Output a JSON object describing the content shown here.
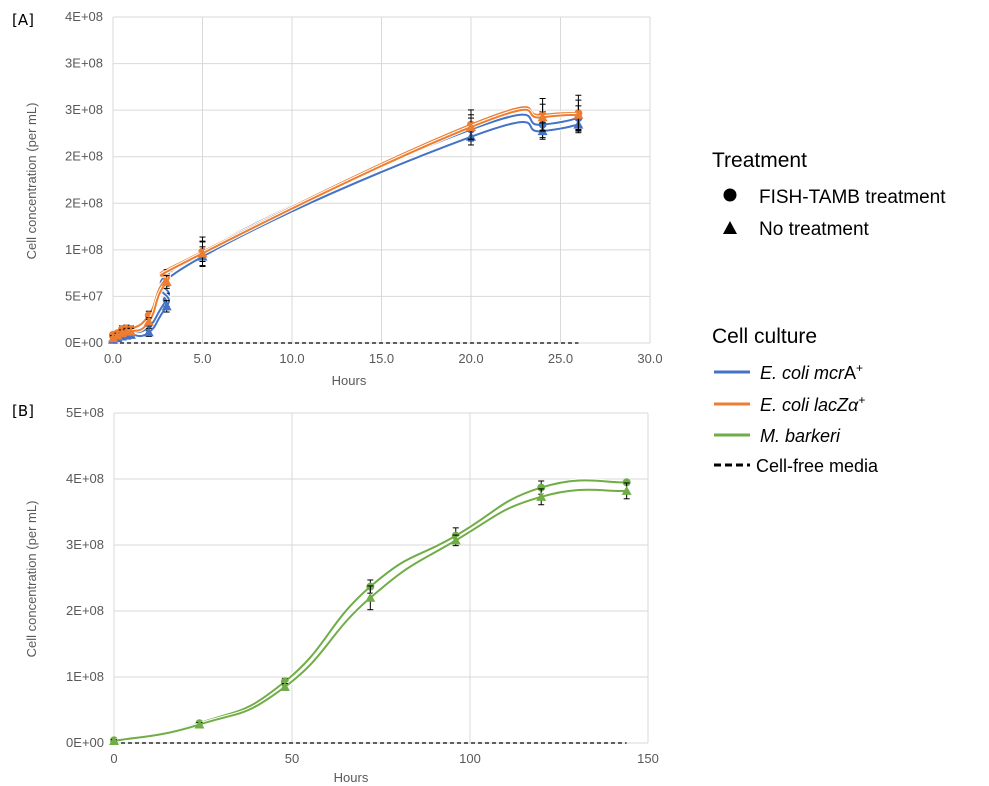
{
  "legend": {
    "treatment_title": "Treatment",
    "treatment_items": [
      {
        "marker": "circle",
        "label": "FISH-TAMB treatment"
      },
      {
        "marker": "triangle",
        "label": "No treatment"
      }
    ],
    "culture_title": "Cell culture",
    "culture_items": [
      {
        "prefix": "E. coli ",
        "italic_part": "mcr",
        "suffix": "A",
        "sup": "+",
        "color": "#4472C4",
        "dash": false
      },
      {
        "prefix": "E. coli ",
        "italic_part": "lacZα",
        "suffix": "",
        "sup": "+",
        "color": "#ED7D31",
        "dash": false
      },
      {
        "prefix": "M. barkeri",
        "italic_part": "",
        "suffix": "",
        "sup": "",
        "color": "#70AD47",
        "dash": false
      },
      {
        "prefix": "",
        "italic_part": "",
        "suffix": "Cell-free media",
        "sup": "",
        "color": "#000000",
        "dash": true
      }
    ]
  },
  "chart_data": [
    {
      "panel": "[A]",
      "type": "line",
      "xlabel": "Hours",
      "ylabel": "Cell concentration (per mL)",
      "xlim": [
        0,
        30
      ],
      "ylim": [
        0,
        400000000
      ],
      "x_ticks": [
        "0.0",
        "5.0",
        "10.0",
        "15.0",
        "20.0",
        "25.0",
        "30.0"
      ],
      "y_ticks": [
        "0E+00",
        "5E+07",
        "1E+08",
        "2E+08",
        "2E+08",
        "3E+08",
        "3E+08",
        "4E+08"
      ],
      "grid": true,
      "x": [
        0,
        0.25,
        0.5,
        0.75,
        1,
        2,
        3,
        5,
        20,
        24,
        26
      ],
      "series": [
        {
          "culture": "E. coli mcrA+",
          "treatment": "FISH-TAMB treatment",
          "color": "#4472C4",
          "marker": "circle",
          "values": [
            9000000,
            10000000,
            12000000,
            13000000,
            13000000,
            20000000,
            53000000,
            112000000,
            262000000,
            268000000,
            276000000
          ],
          "errors": [
            3000000,
            3000000,
            4000000,
            4000000,
            4000000,
            5000000,
            8000000,
            12000000,
            14000000,
            16000000,
            15000000
          ]
        },
        {
          "culture": "E. coli mcrA+",
          "treatment": "No treatment",
          "color": "#4472C4",
          "marker": "triangle",
          "values": [
            4000000,
            6000000,
            8000000,
            9000000,
            10000000,
            13000000,
            45000000,
            106000000,
            253000000,
            260000000,
            268000000
          ],
          "errors": [
            3000000,
            3000000,
            4000000,
            4000000,
            4000000,
            5000000,
            7000000,
            12000000,
            10000000,
            10000000,
            10000000
          ]
        },
        {
          "culture": "E. coli lacZα+",
          "treatment": "FISH-TAMB treatment",
          "color": "#ED7D31",
          "marker": "circle",
          "values": [
            10000000,
            12000000,
            17000000,
            18000000,
            17000000,
            34000000,
            80000000,
            112000000,
            268000000,
            280000000,
            282000000
          ],
          "errors": [
            3000000,
            3000000,
            4000000,
            4000000,
            4000000,
            5000000,
            10000000,
            18000000,
            18000000,
            20000000,
            22000000
          ]
        },
        {
          "culture": "E. coli lacZα+",
          "treatment": "No treatment",
          "color": "#ED7D31",
          "marker": "triangle",
          "values": [
            6000000,
            9000000,
            12000000,
            14000000,
            14000000,
            26000000,
            75000000,
            110000000,
            265000000,
            277000000,
            280000000
          ],
          "errors": [
            3000000,
            3000000,
            4000000,
            4000000,
            4000000,
            5000000,
            8000000,
            15000000,
            15000000,
            16000000,
            18000000
          ]
        }
      ],
      "cell_free": {
        "x": [
          0,
          26
        ],
        "values": [
          0,
          0
        ]
      }
    },
    {
      "panel": "[B]",
      "type": "line",
      "xlabel": "Hours",
      "ylabel": "Cell concentration (per mL)",
      "xlim": [
        0,
        150
      ],
      "ylim": [
        0,
        500000000
      ],
      "x_ticks": [
        "0",
        "50",
        "100",
        "150"
      ],
      "y_ticks": [
        "0E+00",
        "1E+08",
        "2E+08",
        "3E+08",
        "4E+08",
        "5E+08"
      ],
      "grid": true,
      "x": [
        0,
        24,
        48,
        72,
        96,
        120,
        144
      ],
      "series": [
        {
          "culture": "M. barkeri",
          "treatment": "FISH-TAMB treatment",
          "color": "#70AD47",
          "marker": "circle",
          "values": [
            4000000,
            30000000,
            93000000,
            237000000,
            314000000,
            387000000,
            395000000
          ],
          "errors": [
            2000000,
            3000000,
            5000000,
            10000000,
            12000000,
            10000000,
            0
          ]
        },
        {
          "culture": "M. barkeri",
          "treatment": "No treatment",
          "color": "#70AD47",
          "marker": "triangle",
          "values": [
            3000000,
            28000000,
            85000000,
            220000000,
            307000000,
            373000000,
            382000000
          ],
          "errors": [
            2000000,
            3000000,
            5000000,
            18000000,
            8000000,
            12000000,
            12000000
          ]
        }
      ],
      "cell_free": {
        "x": [
          0,
          144
        ],
        "values": [
          0,
          0
        ]
      }
    }
  ]
}
